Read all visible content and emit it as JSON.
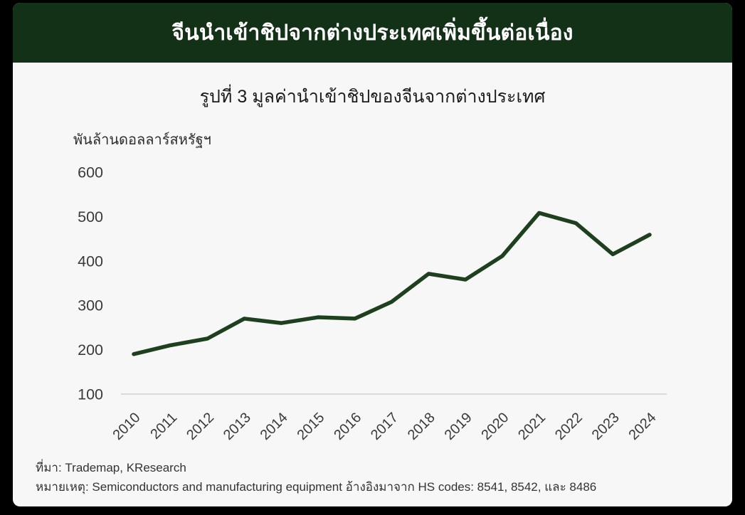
{
  "banner": {
    "title": "จีนนำเข้าชิปจากต่างประเทศเพิ่มขึ้นต่อเนื่อง",
    "bg_color": "#133117",
    "text_color": "#ffffff"
  },
  "chart_data": {
    "type": "line",
    "title": "รูปที่ 3 มูลค่านำเข้าชิปของจีนจากต่างประเทศ",
    "unit_label": "พันล้านดอลลาร์สหรัฐฯ",
    "categories": [
      "2010",
      "2011",
      "2012",
      "2013",
      "2014",
      "2015",
      "2016",
      "2017",
      "2018",
      "2019",
      "2020",
      "2021",
      "2022",
      "2023",
      "2024"
    ],
    "series": [
      {
        "name": "มูลค่านำเข้าชิปของจีนจากต่างประเทศ",
        "values": [
          190,
          210,
          225,
          270,
          260,
          273,
          270,
          308,
          371,
          358,
          411,
          508,
          485,
          415,
          459
        ]
      }
    ],
    "xlabel": "",
    "ylabel": "พันล้านดอลลาร์สหรัฐฯ",
    "ylim": [
      100,
      600
    ],
    "yticks": [
      100,
      200,
      300,
      400,
      500,
      600
    ],
    "grid": false,
    "legend_position": "none",
    "line_color": "#1e401e",
    "axis_line_color": "#dadada",
    "tick_text_color": "#3a3a3a"
  },
  "footer": {
    "source": "ที่มา: Trademap, KResearch",
    "note": "หมายเหตุ: Semiconductors and manufacturing equipment อ้างอิงมาจาก HS codes: 8541, 8542, และ 8486"
  },
  "colors": {
    "page_bg": "#000000",
    "card_bg": "#f7f7f7"
  }
}
